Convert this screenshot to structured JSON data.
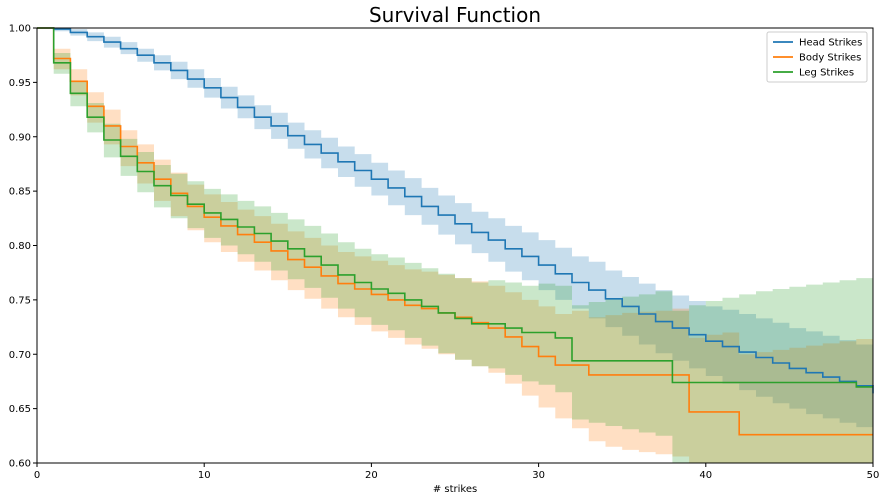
{
  "chart_data": {
    "type": "line",
    "title": "Survival Function",
    "xlabel": "# strikes",
    "ylabel": "",
    "xlim": [
      0,
      50
    ],
    "ylim": [
      0.6,
      1.0
    ],
    "xticks": [
      0,
      10,
      20,
      30,
      40,
      50
    ],
    "yticks": [
      0.6,
      0.65,
      0.7,
      0.75,
      0.8,
      0.85,
      0.9,
      0.95,
      1.0
    ],
    "ytick_labels": [
      "0.60",
      "0.65",
      "0.70",
      "0.75",
      "0.80",
      "0.85",
      "0.90",
      "0.95",
      "1.00"
    ],
    "legend_position": "top-right",
    "series": [
      {
        "name": "Head Strikes",
        "color": "#1f77b4",
        "x": [
          0,
          1,
          2,
          3,
          4,
          5,
          6,
          7,
          8,
          9,
          10,
          11,
          12,
          13,
          14,
          15,
          16,
          17,
          18,
          19,
          20,
          21,
          22,
          23,
          24,
          25,
          26,
          27,
          28,
          29,
          30,
          31,
          32,
          33,
          34,
          35,
          36,
          37,
          38,
          39,
          40,
          41,
          42,
          43,
          44,
          45,
          46,
          47,
          48,
          49,
          50
        ],
        "values": [
          1.0,
          0.999,
          0.996,
          0.992,
          0.987,
          0.981,
          0.975,
          0.968,
          0.961,
          0.953,
          0.945,
          0.936,
          0.927,
          0.918,
          0.91,
          0.901,
          0.893,
          0.885,
          0.877,
          0.869,
          0.861,
          0.853,
          0.845,
          0.836,
          0.828,
          0.82,
          0.812,
          0.805,
          0.797,
          0.79,
          0.782,
          0.774,
          0.766,
          0.759,
          0.751,
          0.744,
          0.737,
          0.73,
          0.724,
          0.718,
          0.712,
          0.707,
          0.702,
          0.697,
          0.692,
          0.687,
          0.683,
          0.679,
          0.675,
          0.671,
          0.664
        ],
        "lower": [
          1.0,
          0.997,
          0.993,
          0.988,
          0.982,
          0.976,
          0.969,
          0.961,
          0.953,
          0.945,
          0.936,
          0.926,
          0.917,
          0.907,
          0.898,
          0.889,
          0.88,
          0.871,
          0.863,
          0.854,
          0.846,
          0.837,
          0.828,
          0.819,
          0.81,
          0.801,
          0.793,
          0.785,
          0.776,
          0.768,
          0.759,
          0.75,
          0.742,
          0.733,
          0.725,
          0.717,
          0.709,
          0.701,
          0.694,
          0.687,
          0.68,
          0.673,
          0.667,
          0.661,
          0.655,
          0.65,
          0.645,
          0.641,
          0.637,
          0.633,
          0.625
        ],
        "upper": [
          1.0,
          1.0,
          0.999,
          0.996,
          0.992,
          0.987,
          0.981,
          0.975,
          0.969,
          0.962,
          0.954,
          0.946,
          0.938,
          0.929,
          0.922,
          0.913,
          0.906,
          0.899,
          0.891,
          0.884,
          0.876,
          0.869,
          0.862,
          0.853,
          0.846,
          0.839,
          0.831,
          0.825,
          0.818,
          0.812,
          0.805,
          0.798,
          0.79,
          0.785,
          0.777,
          0.771,
          0.765,
          0.759,
          0.754,
          0.749,
          0.744,
          0.741,
          0.737,
          0.733,
          0.729,
          0.724,
          0.721,
          0.717,
          0.713,
          0.709,
          0.703
        ]
      },
      {
        "name": "Body Strikes",
        "color": "#ff7f0e",
        "x": [
          0,
          1,
          2,
          3,
          4,
          5,
          6,
          7,
          8,
          9,
          10,
          11,
          12,
          13,
          14,
          15,
          16,
          17,
          18,
          19,
          20,
          21,
          22,
          23,
          24,
          25,
          26,
          27,
          28,
          29,
          30,
          31,
          32,
          33,
          34,
          35,
          36,
          37,
          38,
          39,
          40,
          41,
          42,
          43,
          44,
          45,
          46,
          47,
          48,
          49,
          50
        ],
        "values": [
          1.0,
          0.972,
          0.951,
          0.928,
          0.91,
          0.891,
          0.876,
          0.861,
          0.848,
          0.836,
          0.826,
          0.818,
          0.81,
          0.803,
          0.795,
          0.787,
          0.78,
          0.772,
          0.765,
          0.76,
          0.755,
          0.75,
          0.745,
          0.742,
          0.738,
          0.734,
          0.729,
          0.724,
          0.716,
          0.707,
          0.698,
          0.69,
          0.69,
          0.681,
          0.681,
          0.681,
          0.681,
          0.681,
          0.681,
          0.647,
          0.647,
          0.647,
          0.626,
          0.626,
          0.626,
          0.626,
          0.626,
          0.626,
          0.626,
          0.626,
          0.626
        ],
        "lower": [
          1.0,
          0.962,
          0.938,
          0.913,
          0.893,
          0.873,
          0.857,
          0.841,
          0.827,
          0.814,
          0.803,
          0.794,
          0.785,
          0.777,
          0.768,
          0.759,
          0.751,
          0.742,
          0.734,
          0.727,
          0.721,
          0.715,
          0.709,
          0.705,
          0.7,
          0.695,
          0.689,
          0.683,
          0.673,
          0.662,
          0.651,
          0.641,
          0.632,
          0.62,
          0.615,
          0.612,
          0.61,
          0.608,
          0.606,
          0.6,
          0.6,
          0.6,
          0.6,
          0.6,
          0.6,
          0.6,
          0.6,
          0.6,
          0.6,
          0.6,
          0.6
        ],
        "upper": [
          1.0,
          0.981,
          0.962,
          0.941,
          0.925,
          0.906,
          0.893,
          0.879,
          0.867,
          0.856,
          0.847,
          0.84,
          0.833,
          0.827,
          0.82,
          0.813,
          0.807,
          0.8,
          0.794,
          0.79,
          0.786,
          0.782,
          0.778,
          0.776,
          0.773,
          0.77,
          0.767,
          0.763,
          0.757,
          0.75,
          0.744,
          0.737,
          0.74,
          0.734,
          0.736,
          0.738,
          0.739,
          0.74,
          0.742,
          0.715,
          0.718,
          0.72,
          0.7,
          0.702,
          0.704,
          0.706,
          0.708,
          0.71,
          0.712,
          0.714,
          0.716
        ]
      },
      {
        "name": "Leg Strikes",
        "color": "#2ca02c",
        "x": [
          0,
          1,
          2,
          3,
          4,
          5,
          6,
          7,
          8,
          9,
          10,
          11,
          12,
          13,
          14,
          15,
          16,
          17,
          18,
          19,
          20,
          21,
          22,
          23,
          24,
          25,
          26,
          27,
          28,
          29,
          30,
          31,
          32,
          33,
          34,
          35,
          36,
          37,
          38,
          39,
          40,
          41,
          42,
          43,
          44,
          45,
          46,
          47,
          48,
          49,
          50
        ],
        "values": [
          1.0,
          0.968,
          0.94,
          0.918,
          0.897,
          0.882,
          0.868,
          0.855,
          0.846,
          0.838,
          0.83,
          0.824,
          0.817,
          0.811,
          0.804,
          0.797,
          0.79,
          0.782,
          0.773,
          0.766,
          0.76,
          0.756,
          0.75,
          0.744,
          0.738,
          0.733,
          0.728,
          0.728,
          0.724,
          0.72,
          0.72,
          0.715,
          0.694,
          0.694,
          0.694,
          0.694,
          0.694,
          0.694,
          0.674,
          0.674,
          0.674,
          0.674,
          0.674,
          0.674,
          0.674,
          0.674,
          0.674,
          0.674,
          0.674,
          0.67,
          0.67
        ],
        "lower": [
          1.0,
          0.958,
          0.928,
          0.904,
          0.881,
          0.864,
          0.849,
          0.835,
          0.825,
          0.816,
          0.807,
          0.8,
          0.792,
          0.785,
          0.777,
          0.769,
          0.761,
          0.752,
          0.742,
          0.734,
          0.727,
          0.722,
          0.715,
          0.708,
          0.701,
          0.695,
          0.689,
          0.687,
          0.681,
          0.675,
          0.672,
          0.665,
          0.64,
          0.637,
          0.634,
          0.631,
          0.628,
          0.625,
          0.6,
          0.6,
          0.6,
          0.6,
          0.6,
          0.6,
          0.6,
          0.6,
          0.6,
          0.6,
          0.6,
          0.6,
          0.6
        ],
        "upper": [
          1.0,
          0.977,
          0.951,
          0.931,
          0.912,
          0.898,
          0.886,
          0.874,
          0.866,
          0.859,
          0.852,
          0.847,
          0.841,
          0.836,
          0.83,
          0.824,
          0.818,
          0.811,
          0.803,
          0.797,
          0.792,
          0.789,
          0.784,
          0.779,
          0.774,
          0.77,
          0.766,
          0.768,
          0.766,
          0.763,
          0.765,
          0.763,
          0.745,
          0.748,
          0.751,
          0.753,
          0.755,
          0.758,
          0.74,
          0.745,
          0.749,
          0.752,
          0.755,
          0.758,
          0.76,
          0.762,
          0.764,
          0.766,
          0.768,
          0.77,
          0.772
        ]
      }
    ]
  }
}
